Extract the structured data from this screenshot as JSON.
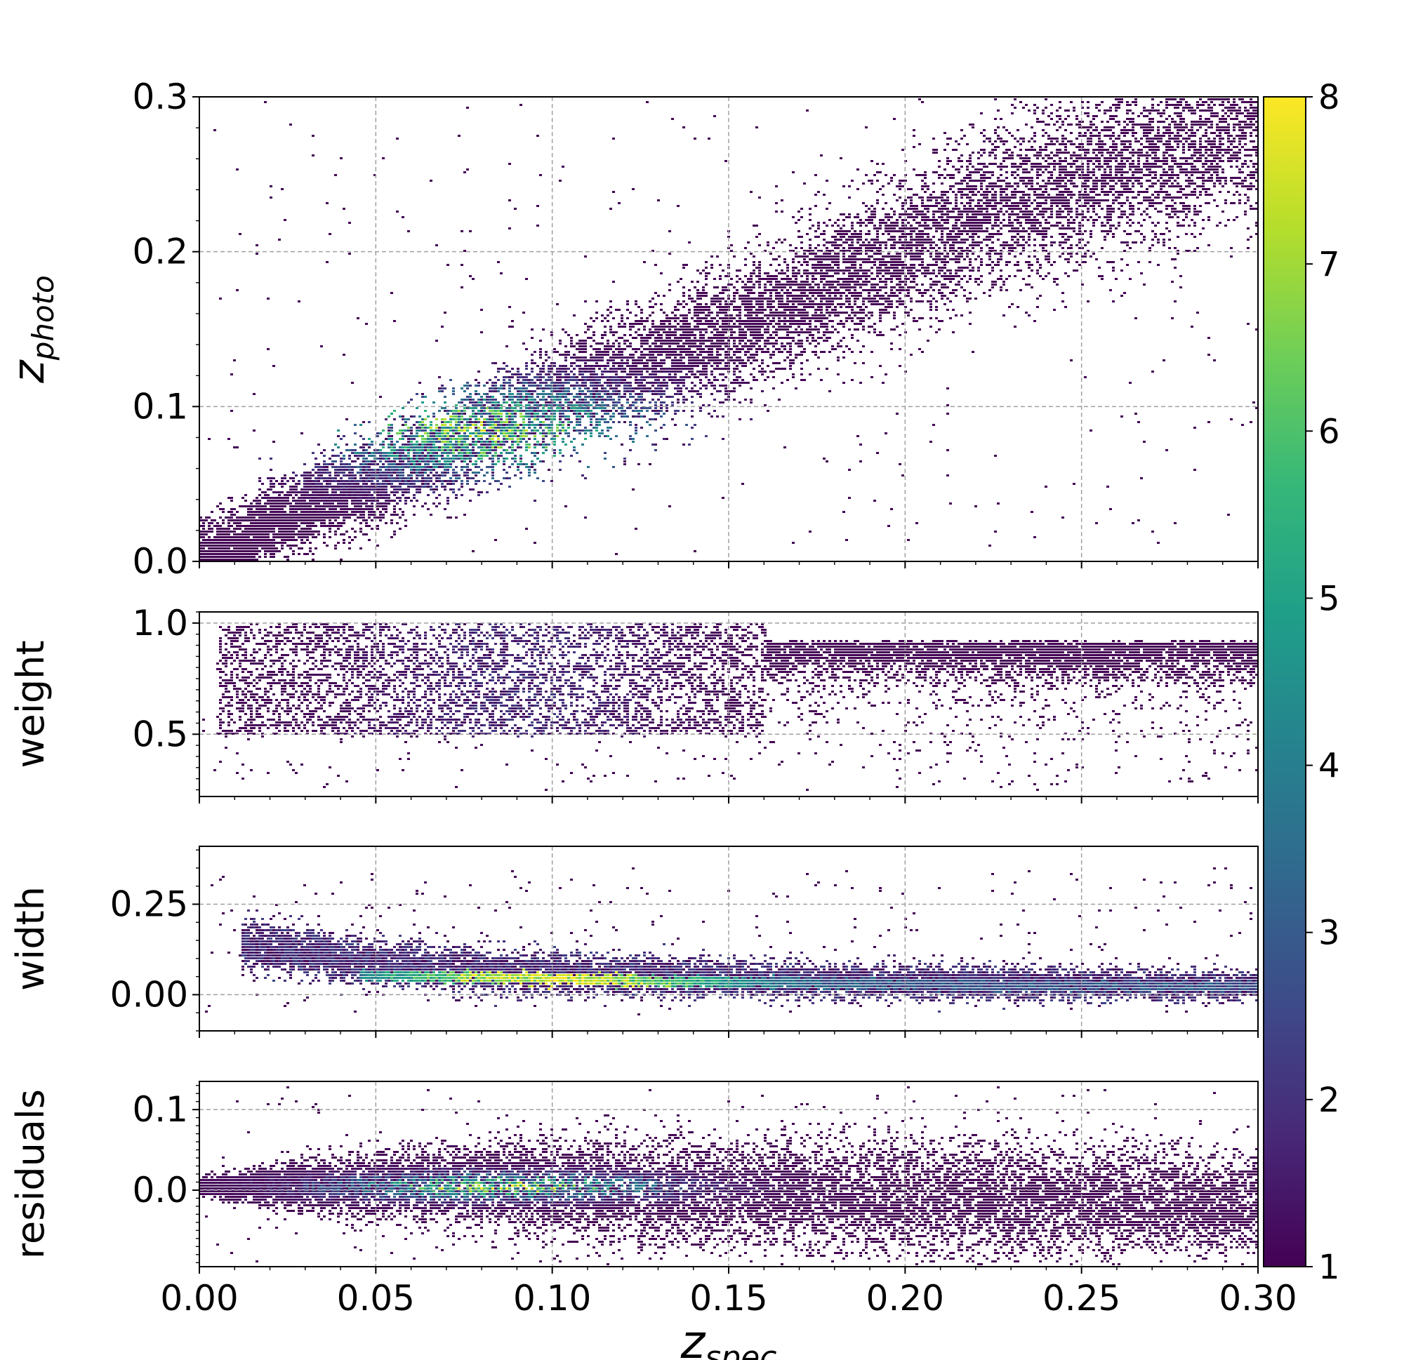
{
  "chart_data": [
    {
      "type": "heatmap",
      "id": "zphoto",
      "ylabel": "z",
      "ylabel_sub": "photo",
      "xlim": [
        0.0,
        0.3
      ],
      "ylim": [
        0.0,
        0.3
      ],
      "yticks": [
        {
          "v": 0.0,
          "label": "0.0"
        },
        {
          "v": 0.1,
          "label": "0.1"
        },
        {
          "v": 0.2,
          "label": "0.2"
        },
        {
          "v": 0.3,
          "label": "0.3"
        }
      ],
      "grid": true,
      "structure": {
        "kind": "band",
        "ctrl": [
          [
            0.0,
            0.0
          ],
          [
            0.02,
            0.025
          ],
          [
            0.05,
            0.055
          ],
          [
            0.08,
            0.085
          ],
          [
            0.1,
            0.105
          ],
          [
            0.13,
            0.13
          ],
          [
            0.16,
            0.16
          ],
          [
            0.19,
            0.19
          ],
          [
            0.22,
            0.225
          ],
          [
            0.26,
            0.255
          ],
          [
            0.3,
            0.285
          ]
        ],
        "spread": 0.022,
        "peak": [
          0.08,
          0.085
        ],
        "peak_level": 6.5,
        "extra_rows": [
          0.0
        ],
        "scatter": true
      }
    },
    {
      "type": "heatmap",
      "id": "weight",
      "ylabel": "weight",
      "xlim": [
        0.0,
        0.3
      ],
      "ylim": [
        0.22,
        1.05
      ],
      "yticks": [
        {
          "v": 0.5,
          "label": "0.5"
        },
        {
          "v": 1.0,
          "label": "1.0"
        }
      ],
      "grid": true,
      "structure": {
        "kind": "weight",
        "range": [
          0.5,
          1.0
        ]
      }
    },
    {
      "type": "heatmap",
      "id": "width",
      "ylabel": "width",
      "xlim": [
        0.0,
        0.3
      ],
      "ylim": [
        -0.1,
        0.41
      ],
      "yticks": [
        {
          "v": 0.0,
          "label": "0.00"
        },
        {
          "v": 0.25,
          "label": "0.25"
        }
      ],
      "grid": true,
      "structure": {
        "kind": "width",
        "ctrl": [
          [
            0.015,
            0.14
          ],
          [
            0.05,
            0.09
          ],
          [
            0.08,
            0.07
          ],
          [
            0.12,
            0.055
          ],
          [
            0.18,
            0.04
          ],
          [
            0.3,
            0.025
          ]
        ],
        "core": [
          [
            0.05,
            0.055
          ],
          [
            0.09,
            0.05
          ],
          [
            0.13,
            0.04
          ],
          [
            0.2,
            0.03
          ],
          [
            0.3,
            0.025
          ]
        ],
        "peak_level": 8
      }
    },
    {
      "type": "heatmap",
      "id": "residuals",
      "ylabel": "residuals",
      "xlim": [
        0.0,
        0.3
      ],
      "ylim": [
        -0.095,
        0.135
      ],
      "yticks": [
        {
          "v": 0.0,
          "label": "0.0"
        },
        {
          "v": 0.1,
          "label": "0.1"
        }
      ],
      "grid": true,
      "structure": {
        "kind": "residuals",
        "ctrl": [
          [
            0.0,
            0.005
          ],
          [
            0.05,
            0.008
          ],
          [
            0.08,
            0.01
          ],
          [
            0.12,
            0.0
          ],
          [
            0.16,
            -0.005
          ],
          [
            0.2,
            -0.008
          ],
          [
            0.25,
            -0.01
          ],
          [
            0.3,
            -0.015
          ]
        ],
        "spread": [
          [
            0.0,
            0.005
          ],
          [
            0.03,
            0.015
          ],
          [
            0.1,
            0.03
          ],
          [
            0.2,
            0.035
          ],
          [
            0.3,
            0.03
          ]
        ],
        "peak_level": 7
      }
    }
  ],
  "x_axis": {
    "label": "z",
    "label_sub": "spec",
    "ticks": [
      {
        "v": 0.0,
        "label": "0.00"
      },
      {
        "v": 0.05,
        "label": "0.05"
      },
      {
        "v": 0.1,
        "label": "0.10"
      },
      {
        "v": 0.15,
        "label": "0.15"
      },
      {
        "v": 0.2,
        "label": "0.20"
      },
      {
        "v": 0.25,
        "label": "0.25"
      },
      {
        "v": 0.3,
        "label": "0.30"
      }
    ]
  },
  "colorbar": {
    "cmap": "viridis",
    "range": [
      1,
      8
    ],
    "ticks": [
      {
        "v": 1,
        "label": "1"
      },
      {
        "v": 2,
        "label": "2"
      },
      {
        "v": 3,
        "label": "3"
      },
      {
        "v": 4,
        "label": "4"
      },
      {
        "v": 5,
        "label": "5"
      },
      {
        "v": 6,
        "label": "6"
      },
      {
        "v": 7,
        "label": "7"
      },
      {
        "v": 8,
        "label": "8"
      }
    ],
    "stops": [
      "#440154",
      "#482878",
      "#3e4a89",
      "#31688e",
      "#26828e",
      "#1f9e89",
      "#35b779",
      "#6ece58",
      "#b5de2b",
      "#fde725"
    ]
  }
}
